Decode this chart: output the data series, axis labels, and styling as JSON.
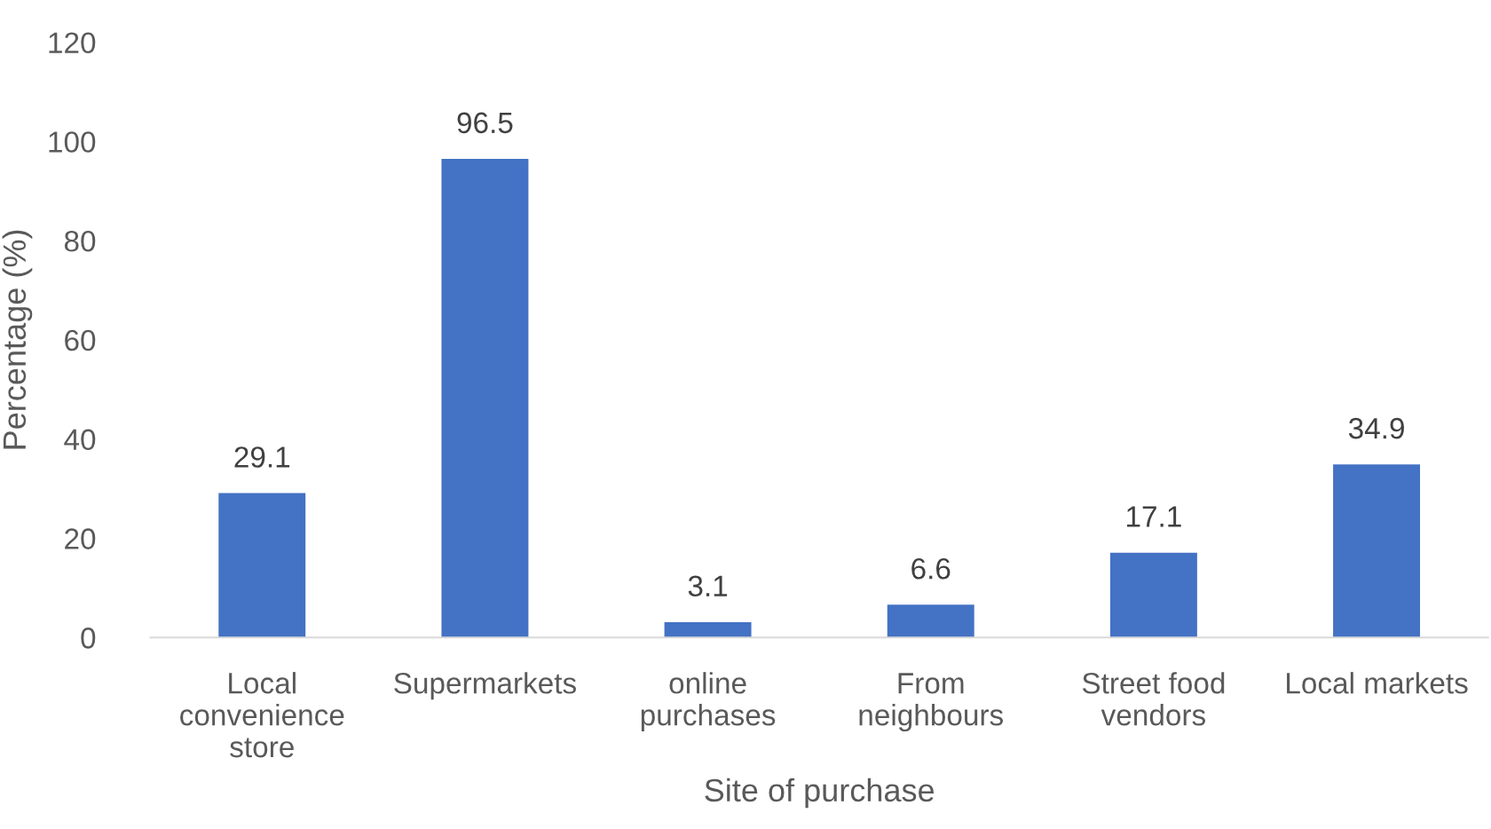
{
  "chart_data": {
    "type": "bar",
    "xlabel": "Site of purchase",
    "ylabel": "Percentage (%)",
    "categories": [
      "Local\nconvenience\nstore",
      "Supermarkets",
      "online\npurchases",
      "From\nneighbours",
      "Street food\nvendors",
      "Local markets"
    ],
    "values": [
      29.1,
      96.5,
      3.1,
      6.6,
      17.1,
      34.9
    ],
    "color": "#4472c4",
    "ylim": [
      0,
      120
    ],
    "yticks": [
      0,
      20,
      40,
      60,
      80,
      100,
      120
    ],
    "grid": false,
    "data_labels": true
  }
}
